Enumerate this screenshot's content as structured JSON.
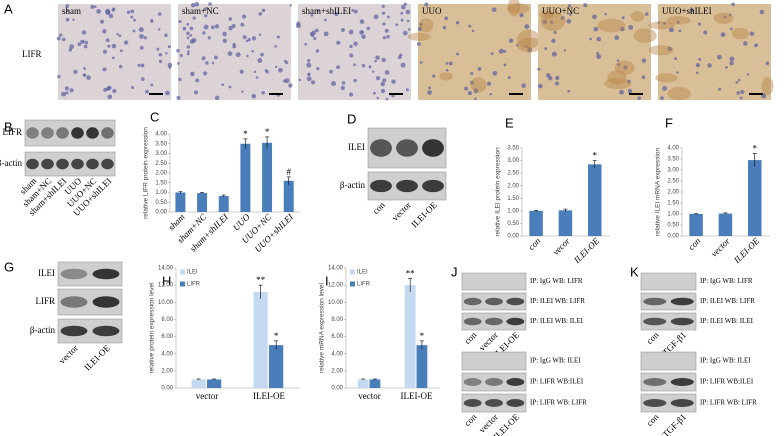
{
  "figure": {
    "panel_letters": [
      "A",
      "B",
      "C",
      "D",
      "E",
      "F",
      "G",
      "H",
      "I",
      "J",
      "K"
    ],
    "A": {
      "row_label": "LIFR",
      "images": [
        "sham",
        "sham+NC",
        "sham+shILEI",
        "UUO",
        "UUO+NC",
        "UUO+shILEI"
      ]
    },
    "B": {
      "rows": [
        "LIFR",
        "β-actin"
      ],
      "lanes": [
        "sham",
        "sham+NC",
        "sham+shILEI",
        "UUO",
        "UUO+NC",
        "UUO+shILEI"
      ]
    },
    "D": {
      "rows": [
        "ILEI",
        "β-actin"
      ],
      "lanes": [
        "con",
        "vector",
        "ILEI-OE"
      ]
    },
    "G": {
      "rows": [
        "ILEI",
        "LIFR",
        "β-actin"
      ],
      "lanes": [
        "vector",
        "ILEI-OE"
      ]
    },
    "J": {
      "blocks": [
        {
          "rows": [
            "IP: IgG WB: LIFR",
            "IP: ILEI WB: LIFR",
            "IP: ILEI WB: ILEI"
          ],
          "lanes": [
            "con",
            "vector",
            "ILEI-OE"
          ]
        },
        {
          "rows": [
            "IP: IgG  WB: ILEI",
            "IP: LIFR WB:ILEI",
            "IP: LIFR WB: LIFR"
          ],
          "lanes": [
            "con",
            "vector",
            "ILEI-OE"
          ]
        }
      ]
    },
    "K": {
      "blocks": [
        {
          "rows": [
            "IP: IgG  WB: LIFR",
            "IP: ILEI WB: LIFR",
            "IP: ILEI WB: ILEI"
          ],
          "lanes": [
            "con",
            "TGF-β1"
          ]
        },
        {
          "rows": [
            "IP: IgG  WB: ILEI",
            "IP: LIFR WB:ILEI",
            "IP: LIFR WB: LIFR"
          ],
          "lanes": [
            "con",
            "TGF-β1"
          ]
        }
      ]
    }
  },
  "chart_data": [
    {
      "type": "bar",
      "y_label": "relative LIFR protein expression",
      "categories": [
        "sham",
        "sham+NC",
        "sham+shILEI",
        "UUO",
        "UUO+NC",
        "UUO+shILEI"
      ],
      "values": [
        1.0,
        0.97,
        0.82,
        3.5,
        3.55,
        1.6
      ],
      "errors": [
        0.04,
        0.03,
        0.05,
        0.25,
        0.3,
        0.2
      ],
      "significance": [
        null,
        null,
        null,
        "*",
        "*",
        "#"
      ],
      "color": "#4a7ebb",
      "ylim": [
        0,
        4
      ],
      "yticks": [
        {
          "value": 0,
          "label": "0.00"
        },
        {
          "value": 0.5,
          "label": "0.50"
        },
        {
          "value": 1,
          "label": "1.00"
        },
        {
          "value": 1.5,
          "label": "1.50"
        },
        {
          "value": 2,
          "label": "2.00"
        },
        {
          "value": 2.5,
          "label": "2.50"
        },
        {
          "value": 3,
          "label": "3.00"
        },
        {
          "value": 3.5,
          "label": "3.50"
        },
        {
          "value": 4,
          "label": "4.00"
        }
      ]
    },
    {
      "type": "bar",
      "y_label": "relative ILEI protein expression",
      "categories": [
        "con",
        "vecor",
        "ILEI-OE"
      ],
      "values": [
        1.0,
        1.02,
        2.85
      ],
      "errors": [
        0.02,
        0.05,
        0.15
      ],
      "significance": [
        null,
        null,
        "*"
      ],
      "color": "#4a7ebb",
      "ylim": [
        0,
        3.5
      ],
      "yticks": [
        {
          "value": 0,
          "label": "0.00"
        },
        {
          "value": 0.5,
          "label": "0.50"
        },
        {
          "value": 1,
          "label": "1.00"
        },
        {
          "value": 1.5,
          "label": "1.50"
        },
        {
          "value": 2,
          "label": "2.00"
        },
        {
          "value": 2.5,
          "label": "2.50"
        },
        {
          "value": 3,
          "label": "3.00"
        },
        {
          "value": 3.5,
          "label": "3.50"
        }
      ]
    },
    {
      "type": "bar",
      "y_label": "relative ILEI mRNA expression",
      "categories": [
        "con",
        "vector",
        "ILEI-OE"
      ],
      "values": [
        1.0,
        1.02,
        3.45
      ],
      "errors": [
        0.02,
        0.03,
        0.3
      ],
      "significance": [
        null,
        null,
        "*"
      ],
      "color": "#4a7ebb",
      "ylim": [
        0,
        4
      ],
      "yticks": [
        {
          "value": 0,
          "label": "0.00"
        },
        {
          "value": 0.5,
          "label": "0.50"
        },
        {
          "value": 1,
          "label": "1.00"
        },
        {
          "value": 1.5,
          "label": "1.50"
        },
        {
          "value": 2,
          "label": "2.00"
        },
        {
          "value": 2.5,
          "label": "2.50"
        },
        {
          "value": 3,
          "label": "3.00"
        },
        {
          "value": 3.5,
          "label": "3.50"
        },
        {
          "value": 4,
          "label": "4.00"
        }
      ]
    },
    {
      "type": "grouped_bar",
      "y_label": "relative protein expression level",
      "categories": [
        "vector",
        "ILEI-OE"
      ],
      "series": [
        {
          "name": "ILEI",
          "color": "#c5d9f1",
          "values": [
            1.0,
            11.2
          ],
          "errors": [
            0.05,
            0.8
          ],
          "significance": [
            null,
            "**"
          ]
        },
        {
          "name": "LIFR",
          "color": "#4a7ebb",
          "values": [
            1.0,
            5.0
          ],
          "errors": [
            0.05,
            0.5
          ],
          "significance": [
            null,
            "*"
          ]
        }
      ],
      "ylim": [
        0,
        14
      ],
      "yticks": [
        {
          "value": 0,
          "label": "0.00"
        },
        {
          "value": 2,
          "label": "2.00"
        },
        {
          "value": 4,
          "label": "4.00"
        },
        {
          "value": 6,
          "label": "6.00"
        },
        {
          "value": 8,
          "label": "8.00"
        },
        {
          "value": 10,
          "label": "10.00"
        },
        {
          "value": 12,
          "label": "12.00"
        },
        {
          "value": 14,
          "label": "14.00"
        }
      ],
      "legend": "top-left"
    },
    {
      "type": "grouped_bar",
      "y_label": "relative mRNA expression level",
      "categories": [
        "vector",
        "ILEI-OE"
      ],
      "series": [
        {
          "name": "ILEI",
          "color": "#c5d9f1",
          "values": [
            1.0,
            12.0
          ],
          "errors": [
            0.05,
            0.8
          ],
          "significance": [
            null,
            "**"
          ]
        },
        {
          "name": "LIFR",
          "color": "#4a7ebb",
          "values": [
            1.0,
            5.0
          ],
          "errors": [
            0.05,
            0.5
          ],
          "significance": [
            null,
            "*"
          ]
        }
      ],
      "ylim": [
        0,
        14
      ],
      "yticks": [
        {
          "value": 0,
          "label": "0.00"
        },
        {
          "value": 2,
          "label": "2.00"
        },
        {
          "value": 4,
          "label": "4.00"
        },
        {
          "value": 6,
          "label": "6.00"
        },
        {
          "value": 8,
          "label": "8.00"
        },
        {
          "value": 10,
          "label": "10.00"
        },
        {
          "value": 12,
          "label": "12.00"
        },
        {
          "value": 14,
          "label": "14.00"
        }
      ],
      "legend": "top-left"
    }
  ]
}
